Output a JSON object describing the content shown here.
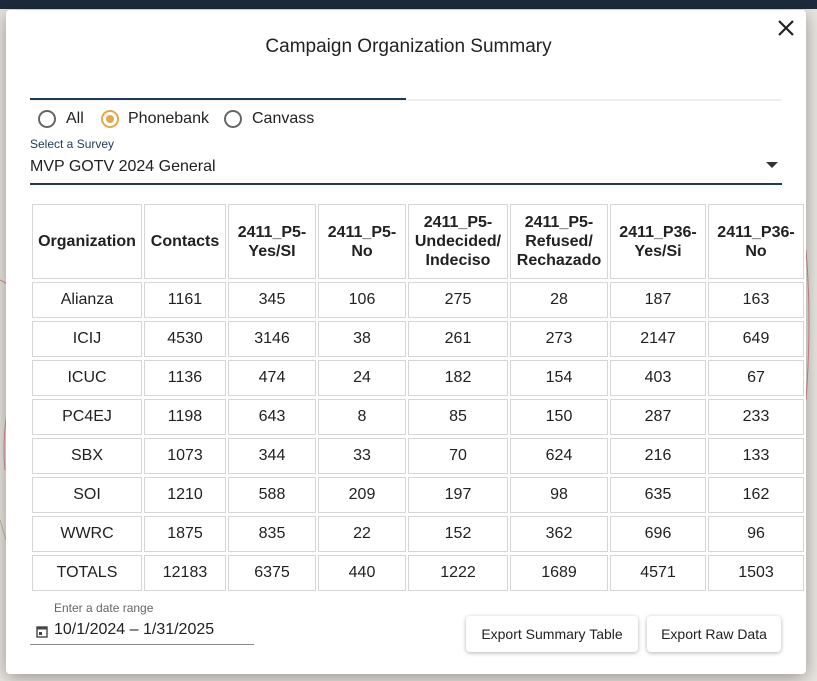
{
  "dialog": {
    "title": "Campaign Organization Summary",
    "filter_options": [
      "All",
      "Phonebank",
      "Canvass"
    ],
    "selected_filter": 1,
    "survey": {
      "label": "Select a Survey",
      "value": "MVP GOTV 2024 General"
    },
    "table": {
      "headers": [
        [
          "Organization"
        ],
        [
          "Contacts"
        ],
        [
          "2411_P5-",
          "Yes/SI"
        ],
        [
          "2411_P5-",
          "No"
        ],
        [
          "2411_P5-",
          "Undecided/",
          "Indeciso"
        ],
        [
          "2411_P5-",
          "Refused/",
          "Rechazado"
        ],
        [
          "2411_P36-",
          "Yes/Si"
        ],
        [
          "2411_P36-",
          "No"
        ]
      ],
      "rows": [
        [
          "Alianza",
          1161,
          345,
          106,
          275,
          28,
          187,
          163
        ],
        [
          "ICIJ",
          4530,
          3146,
          38,
          261,
          273,
          2147,
          649
        ],
        [
          "ICUC",
          1136,
          474,
          24,
          182,
          154,
          403,
          67
        ],
        [
          "PC4EJ",
          1198,
          643,
          8,
          85,
          150,
          287,
          233
        ],
        [
          "SBX",
          1073,
          344,
          33,
          70,
          624,
          216,
          133
        ],
        [
          "SOI",
          1210,
          588,
          209,
          197,
          98,
          635,
          162
        ],
        [
          "WWRC",
          1875,
          835,
          22,
          152,
          362,
          696,
          96
        ],
        [
          "TOTALS",
          12183,
          6375,
          440,
          1222,
          1689,
          4571,
          1503
        ]
      ]
    },
    "date_range": {
      "label": "Enter a date range",
      "value": "10/1/2024 – 1/31/2025"
    },
    "buttons": [
      "Export Summary Table",
      "Export Raw Data"
    ]
  }
}
